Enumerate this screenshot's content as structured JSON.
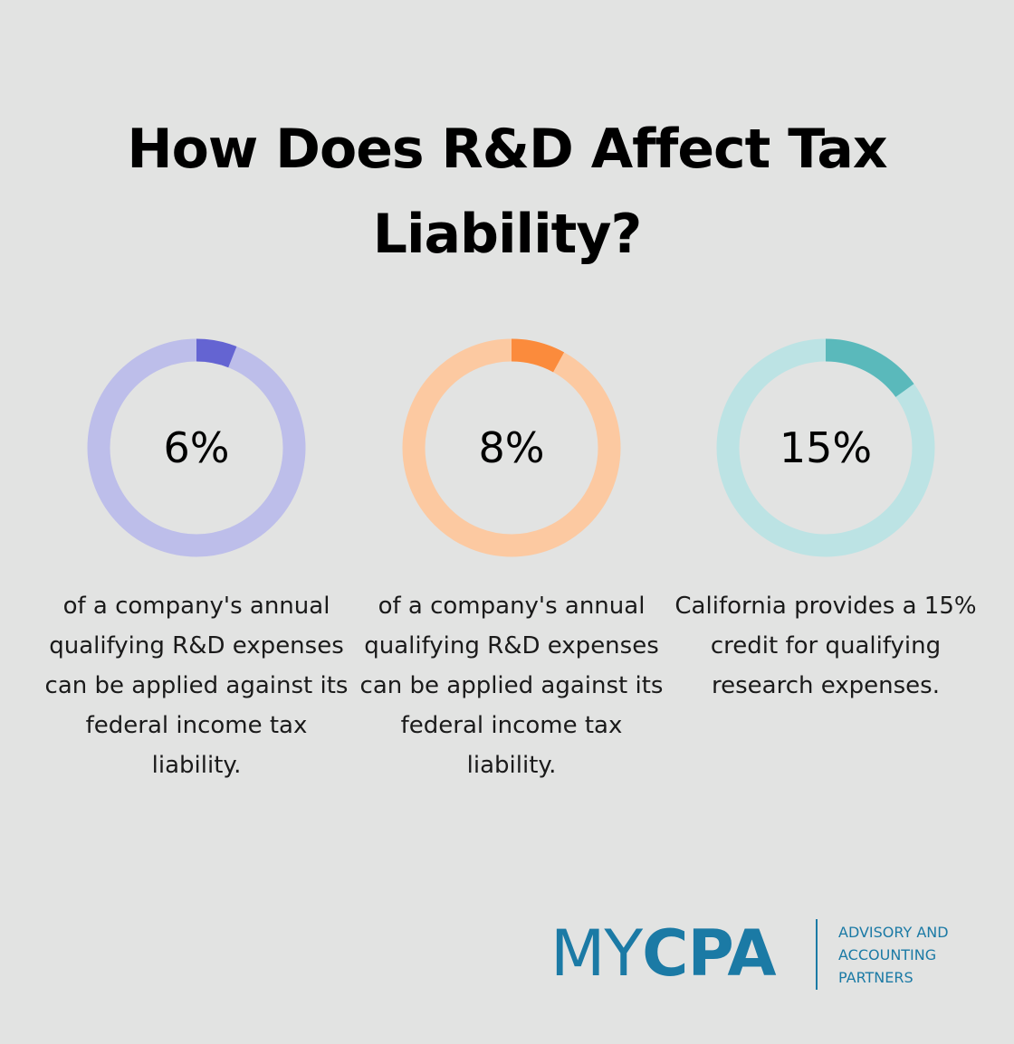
{
  "title": "How Does R&D Affect Tax Liability?",
  "chart_data": [
    {
      "type": "pie",
      "value_label": "6%",
      "values": [
        6,
        94
      ],
      "description": "of a company's annual qualifying R&D expenses can be applied against its federal income tax liability.",
      "colors": {
        "highlight": "#6464d2",
        "track": "#bdbeea"
      }
    },
    {
      "type": "pie",
      "value_label": "8%",
      "values": [
        8,
        92
      ],
      "description": "of a company's annual qualifying R&D expenses can be applied against its federal income tax liability.",
      "colors": {
        "highlight": "#fb8b3c",
        "track": "#fcc9a1"
      }
    },
    {
      "type": "pie",
      "value_label": "15%",
      "values": [
        15,
        85
      ],
      "description": "California provides a 15% credit for qualifying research expenses.",
      "colors": {
        "highlight": "#5ab9bb",
        "track": "#bce3e4"
      }
    }
  ],
  "logo": {
    "word_light": "MY",
    "word_bold": "CPA",
    "tagline": [
      "ADVISORY AND",
      "ACCOUNTING",
      "PARTNERS"
    ],
    "color": "#1b7aa5"
  }
}
